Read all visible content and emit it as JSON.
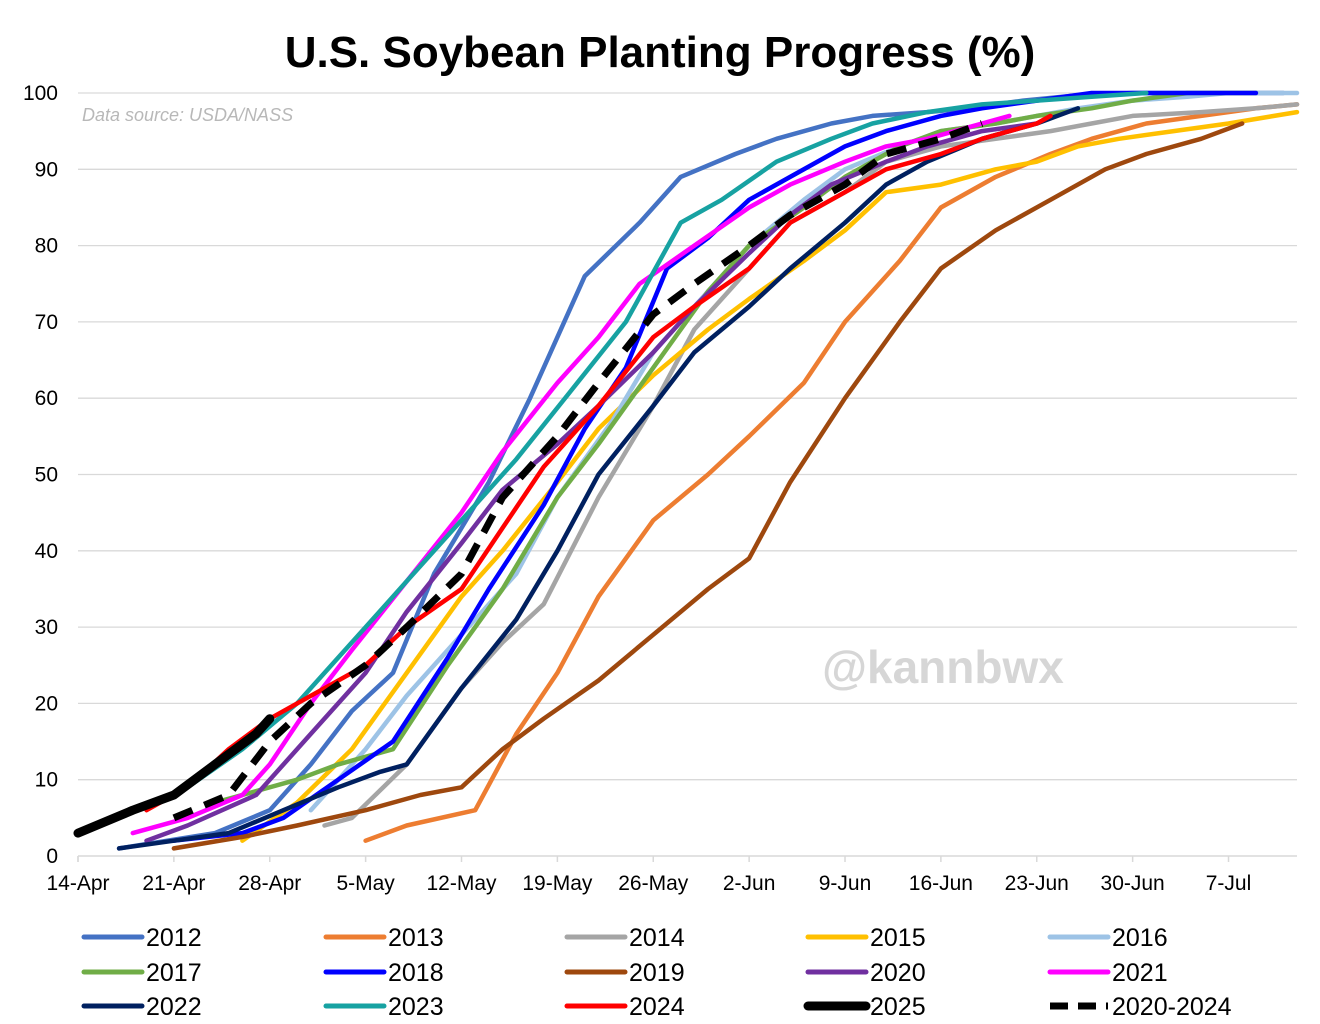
{
  "chart_data": {
    "type": "line",
    "title": "U.S. Soybean Planting Progress (%)",
    "source_note": "Data source: USDA/NASS",
    "watermark": "@kannbwx",
    "xlabel": "",
    "ylabel": "",
    "x_unit": "days since 14-Apr",
    "xlim": [
      0,
      89
    ],
    "ylim": [
      0,
      100
    ],
    "x_ticks": [
      {
        "label": "14-Apr",
        "x": 0
      },
      {
        "label": "21-Apr",
        "x": 7
      },
      {
        "label": "28-Apr",
        "x": 14
      },
      {
        "label": "5-May",
        "x": 21
      },
      {
        "label": "12-May",
        "x": 28
      },
      {
        "label": "19-May",
        "x": 35
      },
      {
        "label": "26-May",
        "x": 42
      },
      {
        "label": "2-Jun",
        "x": 49
      },
      {
        "label": "9-Jun",
        "x": 56
      },
      {
        "label": "16-Jun",
        "x": 63
      },
      {
        "label": "23-Jun",
        "x": 70
      },
      {
        "label": "30-Jun",
        "x": 77
      },
      {
        "label": "7-Jul",
        "x": 84
      }
    ],
    "y_ticks": [
      0,
      10,
      20,
      30,
      40,
      50,
      60,
      70,
      80,
      90,
      100
    ],
    "series": [
      {
        "name": "2012",
        "color": "#4472C4",
        "style": "solid",
        "points": [
          [
            3,
            1
          ],
          [
            10,
            3
          ],
          [
            14,
            6
          ],
          [
            17,
            12
          ],
          [
            20,
            19
          ],
          [
            23,
            24
          ],
          [
            26,
            37
          ],
          [
            30,
            49
          ],
          [
            33,
            60
          ],
          [
            37,
            76
          ],
          [
            41,
            83
          ],
          [
            44,
            89
          ],
          [
            48,
            92
          ],
          [
            51,
            94
          ],
          [
            55,
            96
          ],
          [
            58,
            97
          ],
          [
            62,
            97.5
          ],
          [
            65,
            98
          ],
          [
            69,
            99
          ],
          [
            73,
            99.7
          ],
          [
            77,
            100
          ],
          [
            88,
            100
          ]
        ]
      },
      {
        "name": "2013",
        "color": "#ED7D31",
        "style": "solid",
        "points": [
          [
            21,
            2
          ],
          [
            24,
            4
          ],
          [
            29,
            6
          ],
          [
            32,
            16
          ],
          [
            35,
            24
          ],
          [
            38,
            34
          ],
          [
            42,
            44
          ],
          [
            46,
            50
          ],
          [
            49,
            55
          ],
          [
            53,
            62
          ],
          [
            56,
            70
          ],
          [
            60,
            78
          ],
          [
            63,
            85
          ],
          [
            67,
            89
          ],
          [
            71,
            92
          ],
          [
            74,
            94
          ],
          [
            78,
            96
          ],
          [
            82,
            97
          ],
          [
            86,
            98
          ],
          [
            89,
            98.5
          ]
        ]
      },
      {
        "name": "2014",
        "color": "#A5A5A5",
        "style": "solid",
        "points": [
          [
            18,
            4
          ],
          [
            20,
            5
          ],
          [
            24,
            12
          ],
          [
            28,
            22
          ],
          [
            31,
            28
          ],
          [
            34,
            33
          ],
          [
            38,
            47
          ],
          [
            42,
            59
          ],
          [
            45,
            69
          ],
          [
            49,
            77
          ],
          [
            52,
            83
          ],
          [
            56,
            87
          ],
          [
            59,
            91
          ],
          [
            63,
            93
          ],
          [
            67,
            94
          ],
          [
            71,
            95
          ],
          [
            74,
            96
          ],
          [
            77,
            97
          ],
          [
            82,
            97.5
          ],
          [
            86,
            98
          ],
          [
            89,
            98.5
          ]
        ]
      },
      {
        "name": "2015",
        "color": "#FFC000",
        "style": "solid",
        "points": [
          [
            12,
            2
          ],
          [
            16,
            7
          ],
          [
            20,
            14
          ],
          [
            24,
            24
          ],
          [
            28,
            34
          ],
          [
            31,
            40
          ],
          [
            35,
            49
          ],
          [
            38,
            56
          ],
          [
            42,
            63
          ],
          [
            46,
            69
          ],
          [
            49,
            73
          ],
          [
            53,
            78
          ],
          [
            56,
            82
          ],
          [
            59,
            87
          ],
          [
            63,
            88
          ],
          [
            67,
            90
          ],
          [
            70,
            91
          ],
          [
            73,
            93
          ],
          [
            76,
            94
          ],
          [
            80,
            95
          ],
          [
            84,
            96
          ],
          [
            89,
            97.5
          ]
        ]
      },
      {
        "name": "2016",
        "color": "#9DC3E6",
        "style": "solid",
        "points": [
          [
            17,
            6
          ],
          [
            21,
            14
          ],
          [
            24,
            21
          ],
          [
            28,
            29
          ],
          [
            32,
            37
          ],
          [
            35,
            47
          ],
          [
            39,
            57
          ],
          [
            42,
            66
          ],
          [
            45,
            72
          ],
          [
            49,
            80
          ],
          [
            53,
            86
          ],
          [
            56,
            90
          ],
          [
            60,
            93
          ],
          [
            63,
            95
          ],
          [
            67,
            96
          ],
          [
            70,
            97
          ],
          [
            73,
            98
          ],
          [
            77,
            99
          ],
          [
            81,
            99.5
          ],
          [
            84,
            100
          ],
          [
            89,
            100
          ]
        ]
      },
      {
        "name": "2017",
        "color": "#70AD47",
        "style": "solid",
        "points": [
          [
            10,
            7
          ],
          [
            16,
            10
          ],
          [
            19,
            12
          ],
          [
            23,
            14
          ],
          [
            27,
            25
          ],
          [
            31,
            35
          ],
          [
            35,
            47
          ],
          [
            38,
            54
          ],
          [
            42,
            64
          ],
          [
            46,
            74
          ],
          [
            49,
            80
          ],
          [
            53,
            85
          ],
          [
            56,
            89
          ],
          [
            60,
            93
          ],
          [
            63,
            95
          ],
          [
            67,
            96
          ],
          [
            70,
            97
          ],
          [
            74,
            98
          ],
          [
            77,
            99
          ],
          [
            81,
            100
          ],
          [
            86,
            100
          ]
        ]
      },
      {
        "name": "2018",
        "color": "#0000FF",
        "style": "solid",
        "points": [
          [
            7,
            2
          ],
          [
            12,
            3
          ],
          [
            15,
            5
          ],
          [
            19,
            10
          ],
          [
            23,
            15
          ],
          [
            27,
            26
          ],
          [
            30,
            35
          ],
          [
            34,
            46
          ],
          [
            37,
            56
          ],
          [
            40,
            64
          ],
          [
            43,
            77
          ],
          [
            46,
            81
          ],
          [
            49,
            86
          ],
          [
            52,
            89
          ],
          [
            56,
            93
          ],
          [
            59,
            95
          ],
          [
            63,
            97
          ],
          [
            66,
            98
          ],
          [
            70,
            99
          ],
          [
            74,
            100
          ],
          [
            86,
            100
          ]
        ]
      },
      {
        "name": "2019",
        "color": "#9E480E",
        "style": "solid",
        "points": [
          [
            7,
            1
          ],
          [
            12,
            2.5
          ],
          [
            16,
            4
          ],
          [
            21,
            6
          ],
          [
            25,
            8
          ],
          [
            28,
            9
          ],
          [
            31,
            14
          ],
          [
            34,
            18
          ],
          [
            38,
            23
          ],
          [
            42,
            29
          ],
          [
            46,
            35
          ],
          [
            49,
            39
          ],
          [
            52,
            49
          ],
          [
            56,
            60
          ],
          [
            60,
            70
          ],
          [
            63,
            77
          ],
          [
            67,
            82
          ],
          [
            71,
            86
          ],
          [
            75,
            90
          ],
          [
            78,
            92
          ],
          [
            82,
            94
          ],
          [
            85,
            96
          ]
        ]
      },
      {
        "name": "2020",
        "color": "#7030A0",
        "style": "solid",
        "points": [
          [
            5,
            2
          ],
          [
            8,
            4
          ],
          [
            13,
            8
          ],
          [
            17,
            16
          ],
          [
            21,
            24
          ],
          [
            24,
            32
          ],
          [
            28,
            41
          ],
          [
            31,
            48
          ],
          [
            35,
            54
          ],
          [
            38,
            59
          ],
          [
            42,
            66
          ],
          [
            45,
            72
          ],
          [
            49,
            79
          ],
          [
            52,
            84
          ],
          [
            55,
            88
          ],
          [
            59,
            91
          ],
          [
            62,
            93
          ],
          [
            66,
            95
          ],
          [
            70,
            96
          ]
        ]
      },
      {
        "name": "2021",
        "color": "#FF00FF",
        "style": "solid",
        "points": [
          [
            4,
            3
          ],
          [
            8,
            5
          ],
          [
            12,
            8
          ],
          [
            14,
            12
          ],
          [
            17,
            20
          ],
          [
            20,
            27
          ],
          [
            24,
            36
          ],
          [
            28,
            45
          ],
          [
            31,
            53
          ],
          [
            35,
            62
          ],
          [
            38,
            68
          ],
          [
            41,
            75
          ],
          [
            45,
            80
          ],
          [
            49,
            85
          ],
          [
            52,
            88
          ],
          [
            56,
            91
          ],
          [
            59,
            93
          ],
          [
            62,
            94
          ],
          [
            66,
            96
          ],
          [
            68,
            97
          ]
        ]
      },
      {
        "name": "2022",
        "color": "#002060",
        "style": "solid",
        "points": [
          [
            3,
            1
          ],
          [
            7,
            2
          ],
          [
            11,
            3
          ],
          [
            15,
            6
          ],
          [
            19,
            9
          ],
          [
            22,
            11
          ],
          [
            24,
            12
          ],
          [
            28,
            22
          ],
          [
            32,
            31
          ],
          [
            35,
            40
          ],
          [
            38,
            50
          ],
          [
            42,
            59
          ],
          [
            45,
            66
          ],
          [
            49,
            72
          ],
          [
            52,
            77
          ],
          [
            56,
            83
          ],
          [
            59,
            88
          ],
          [
            62,
            91
          ],
          [
            66,
            94
          ],
          [
            70,
            96
          ],
          [
            73,
            98
          ]
        ]
      },
      {
        "name": "2023",
        "color": "#17A2A2",
        "style": "solid",
        "points": [
          [
            0,
            3
          ],
          [
            4,
            6
          ],
          [
            8,
            9
          ],
          [
            12,
            14
          ],
          [
            16,
            20
          ],
          [
            20,
            28
          ],
          [
            24,
            36
          ],
          [
            28,
            44
          ],
          [
            32,
            52
          ],
          [
            36,
            61
          ],
          [
            40,
            70
          ],
          [
            44,
            83
          ],
          [
            47,
            86
          ],
          [
            51,
            91
          ],
          [
            55,
            94
          ],
          [
            58,
            96
          ],
          [
            62,
            97.5
          ],
          [
            66,
            98.5
          ],
          [
            70,
            99
          ],
          [
            74,
            99.5
          ],
          [
            78,
            100
          ]
        ]
      },
      {
        "name": "2024",
        "color": "#FF0000",
        "style": "solid",
        "points": [
          [
            5,
            6
          ],
          [
            8,
            9
          ],
          [
            11,
            14
          ],
          [
            14,
            18
          ],
          [
            17,
            21
          ],
          [
            21,
            25
          ],
          [
            24,
            30
          ],
          [
            28,
            35
          ],
          [
            31,
            43
          ],
          [
            34,
            51
          ],
          [
            38,
            59
          ],
          [
            42,
            68
          ],
          [
            45,
            72
          ],
          [
            49,
            77
          ],
          [
            52,
            83
          ],
          [
            56,
            87
          ],
          [
            59,
            90
          ],
          [
            63,
            92
          ],
          [
            66,
            94
          ],
          [
            70,
            96
          ],
          [
            71,
            97
          ]
        ]
      },
      {
        "name": "2025",
        "color": "#000000",
        "style": "solid-thick",
        "points": [
          [
            0,
            3
          ],
          [
            4,
            6
          ],
          [
            7,
            8
          ],
          [
            10,
            12
          ],
          [
            13,
            16
          ],
          [
            14,
            18
          ]
        ]
      },
      {
        "name": "2020-2024",
        "color": "#000000",
        "style": "dashed",
        "points": [
          [
            7,
            5
          ],
          [
            11,
            8
          ],
          [
            14,
            15
          ],
          [
            17,
            20
          ],
          [
            21,
            25
          ],
          [
            24,
            30
          ],
          [
            28,
            37
          ],
          [
            31,
            47
          ],
          [
            35,
            55
          ],
          [
            38,
            62
          ],
          [
            42,
            71
          ],
          [
            45,
            75
          ],
          [
            49,
            80
          ],
          [
            52,
            84
          ],
          [
            56,
            88
          ],
          [
            59,
            92
          ],
          [
            63,
            94
          ],
          [
            66,
            96
          ]
        ]
      }
    ]
  }
}
